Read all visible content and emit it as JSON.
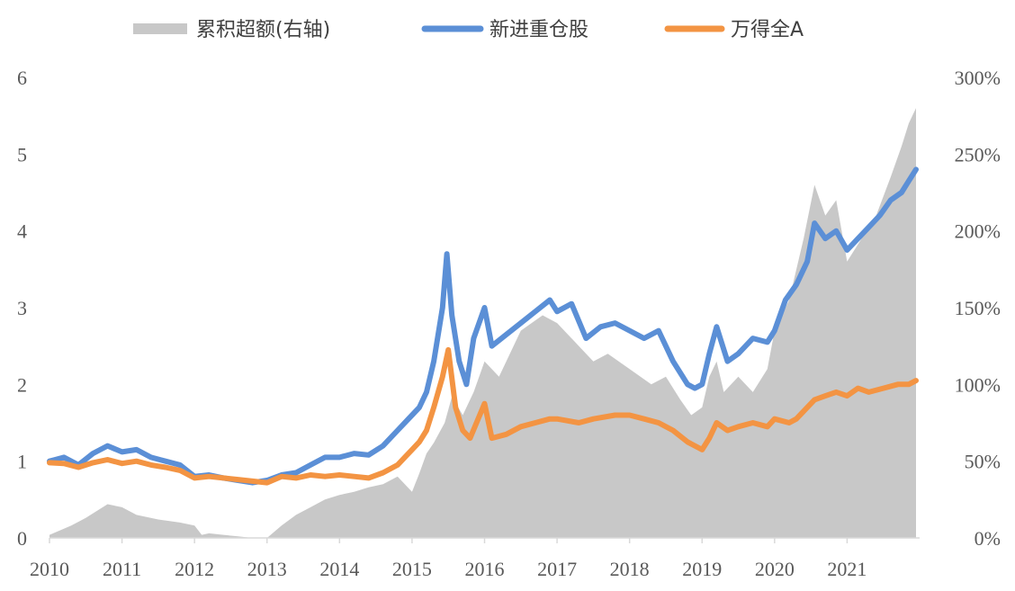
{
  "chart_data": {
    "type": "line",
    "title": "",
    "xlabel": "",
    "ylabel": "",
    "legend_position": "top",
    "x_ticks": [
      "2010",
      "2011",
      "2012",
      "2013",
      "2014",
      "2015",
      "2016",
      "2017",
      "2018",
      "2019",
      "2020",
      "2021"
    ],
    "y_left_ticks": [
      "0",
      "1",
      "2",
      "3",
      "4",
      "5",
      "6"
    ],
    "y_right_ticks": [
      "0%",
      "50%",
      "100%",
      "150%",
      "200%",
      "250%",
      "300%"
    ],
    "ylim_left": [
      0,
      6
    ],
    "ylim_right": [
      0,
      3
    ],
    "series": [
      {
        "name": "累积超额(右轴)",
        "axis": "right",
        "style": "area",
        "color": "#c8c8c8",
        "x": [
          2010.0,
          2010.3,
          2010.5,
          2010.8,
          2011.0,
          2011.2,
          2011.5,
          2011.8,
          2012.0,
          2012.1,
          2012.2,
          2012.4,
          2012.6,
          2012.8,
          2013.0,
          2013.2,
          2013.4,
          2013.6,
          2013.8,
          2014.0,
          2014.2,
          2014.4,
          2014.6,
          2014.8,
          2015.0,
          2015.1,
          2015.2,
          2015.3,
          2015.45,
          2015.55,
          2015.7,
          2015.85,
          2016.0,
          2016.2,
          2016.5,
          2016.8,
          2017.0,
          2017.3,
          2017.5,
          2017.7,
          2018.0,
          2018.3,
          2018.5,
          2018.7,
          2018.85,
          2019.0,
          2019.1,
          2019.2,
          2019.3,
          2019.5,
          2019.7,
          2019.9,
          2020.0,
          2020.2,
          2020.4,
          2020.55,
          2020.7,
          2020.85,
          2021.0,
          2021.2,
          2021.4,
          2021.6,
          2021.75,
          2021.85,
          2021.95
        ],
        "values": [
          0.02,
          0.08,
          0.13,
          0.22,
          0.2,
          0.15,
          0.12,
          0.1,
          0.08,
          0.02,
          0.03,
          0.02,
          0.01,
          0.0,
          0.0,
          0.08,
          0.15,
          0.2,
          0.25,
          0.28,
          0.3,
          0.33,
          0.35,
          0.4,
          0.3,
          0.42,
          0.55,
          0.62,
          0.75,
          0.92,
          0.8,
          0.95,
          1.15,
          1.05,
          1.35,
          1.45,
          1.4,
          1.25,
          1.15,
          1.2,
          1.1,
          1.0,
          1.05,
          0.9,
          0.8,
          0.85,
          1.05,
          1.15,
          0.95,
          1.05,
          0.95,
          1.1,
          1.35,
          1.55,
          1.95,
          2.3,
          2.1,
          2.2,
          1.8,
          1.95,
          2.1,
          2.35,
          2.55,
          2.7,
          2.8
        ]
      },
      {
        "name": "新进重仓股",
        "axis": "left",
        "style": "line",
        "color": "#5b8fd6",
        "x": [
          2010.0,
          2010.2,
          2010.4,
          2010.6,
          2010.8,
          2011.0,
          2011.2,
          2011.4,
          2011.6,
          2011.8,
          2012.0,
          2012.2,
          2012.4,
          2012.6,
          2012.8,
          2013.0,
          2013.2,
          2013.4,
          2013.6,
          2013.8,
          2014.0,
          2014.2,
          2014.4,
          2014.6,
          2014.8,
          2015.0,
          2015.1,
          2015.2,
          2015.3,
          2015.42,
          2015.48,
          2015.55,
          2015.65,
          2015.75,
          2015.85,
          2016.0,
          2016.1,
          2016.3,
          2016.5,
          2016.7,
          2016.9,
          2017.0,
          2017.2,
          2017.4,
          2017.6,
          2017.8,
          2018.0,
          2018.2,
          2018.4,
          2018.6,
          2018.8,
          2018.9,
          2019.0,
          2019.1,
          2019.2,
          2019.35,
          2019.5,
          2019.7,
          2019.9,
          2020.0,
          2020.15,
          2020.3,
          2020.45,
          2020.55,
          2020.7,
          2020.85,
          2021.0,
          2021.15,
          2021.3,
          2021.45,
          2021.6,
          2021.75,
          2021.85,
          2021.95
        ],
        "values": [
          1.0,
          1.05,
          0.95,
          1.1,
          1.2,
          1.12,
          1.15,
          1.05,
          1.0,
          0.95,
          0.8,
          0.82,
          0.78,
          0.75,
          0.72,
          0.75,
          0.82,
          0.85,
          0.95,
          1.05,
          1.05,
          1.1,
          1.08,
          1.2,
          1.4,
          1.6,
          1.7,
          1.9,
          2.3,
          3.0,
          3.7,
          2.9,
          2.3,
          2.0,
          2.6,
          3.0,
          2.5,
          2.65,
          2.8,
          2.95,
          3.1,
          2.95,
          3.05,
          2.6,
          2.75,
          2.8,
          2.7,
          2.6,
          2.7,
          2.3,
          2.0,
          1.95,
          2.0,
          2.4,
          2.75,
          2.3,
          2.4,
          2.6,
          2.55,
          2.7,
          3.1,
          3.3,
          3.6,
          4.1,
          3.9,
          4.0,
          3.75,
          3.9,
          4.05,
          4.2,
          4.4,
          4.5,
          4.65,
          4.8
        ]
      },
      {
        "name": "万得全A",
        "axis": "left",
        "style": "line",
        "color": "#f39443",
        "x": [
          2010.0,
          2010.2,
          2010.4,
          2010.6,
          2010.8,
          2011.0,
          2011.2,
          2011.4,
          2011.6,
          2011.8,
          2012.0,
          2012.2,
          2012.4,
          2012.6,
          2012.8,
          2013.0,
          2013.2,
          2013.4,
          2013.6,
          2013.8,
          2014.0,
          2014.2,
          2014.4,
          2014.6,
          2014.8,
          2015.0,
          2015.1,
          2015.2,
          2015.3,
          2015.42,
          2015.5,
          2015.6,
          2015.7,
          2015.8,
          2016.0,
          2016.1,
          2016.3,
          2016.5,
          2016.7,
          2016.9,
          2017.0,
          2017.3,
          2017.5,
          2017.8,
          2018.0,
          2018.2,
          2018.4,
          2018.6,
          2018.8,
          2018.9,
          2019.0,
          2019.1,
          2019.2,
          2019.35,
          2019.5,
          2019.7,
          2019.9,
          2020.0,
          2020.2,
          2020.3,
          2020.45,
          2020.55,
          2020.7,
          2020.85,
          2021.0,
          2021.15,
          2021.3,
          2021.5,
          2021.7,
          2021.85,
          2021.95
        ],
        "values": [
          0.98,
          0.97,
          0.92,
          0.98,
          1.02,
          0.97,
          1.0,
          0.95,
          0.92,
          0.88,
          0.78,
          0.8,
          0.78,
          0.76,
          0.74,
          0.72,
          0.8,
          0.78,
          0.82,
          0.8,
          0.82,
          0.8,
          0.78,
          0.85,
          0.95,
          1.15,
          1.25,
          1.4,
          1.7,
          2.1,
          2.45,
          1.7,
          1.4,
          1.3,
          1.75,
          1.3,
          1.35,
          1.45,
          1.5,
          1.55,
          1.55,
          1.5,
          1.55,
          1.6,
          1.6,
          1.55,
          1.5,
          1.4,
          1.25,
          1.2,
          1.15,
          1.3,
          1.5,
          1.4,
          1.45,
          1.5,
          1.45,
          1.55,
          1.5,
          1.55,
          1.7,
          1.8,
          1.85,
          1.9,
          1.85,
          1.95,
          1.9,
          1.95,
          2.0,
          2.0,
          2.05
        ]
      }
    ]
  }
}
